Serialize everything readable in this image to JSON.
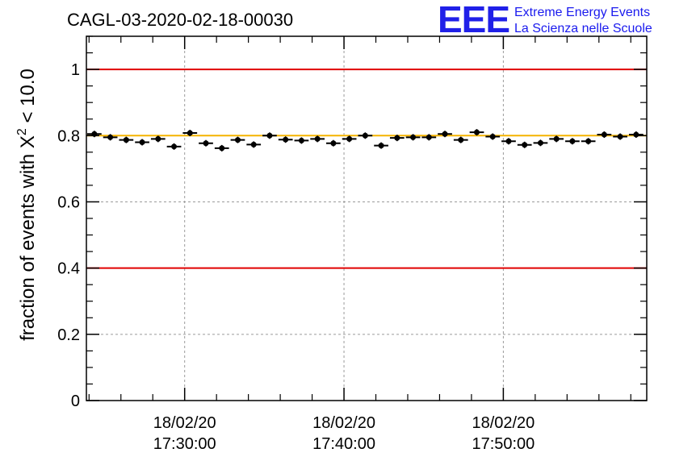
{
  "chart_data": {
    "type": "scatter",
    "title": "CAGL-03-2020-02-18-00030",
    "ylabel_main": "fraction of events with X",
    "ylabel_sup": "2",
    "ylabel_tail": " < 10.0",
    "xlabel": "",
    "ylim": [
      0,
      1.1
    ],
    "yticks": [
      0,
      0.2,
      0.4,
      0.6,
      0.8,
      1
    ],
    "ytick_labels": [
      "0",
      "0.2",
      "0.4",
      "0.6",
      "0.8",
      "1"
    ],
    "xlim": [
      "18/02/20 17:23:50",
      "18/02/20 17:59:00"
    ],
    "xticks": [
      {
        "date": "18/02/20",
        "time": "17:30:00"
      },
      {
        "date": "18/02/20",
        "time": "17:40:00"
      },
      {
        "date": "18/02/20",
        "time": "17:50:00"
      }
    ],
    "grid": true,
    "reference_lines": [
      {
        "y": 1.0,
        "color": "#e00000"
      },
      {
        "y": 0.4,
        "color": "#e00000"
      },
      {
        "y": 0.8,
        "color": "#f5b400"
      }
    ],
    "bin_width_seconds": 60,
    "x_start": "18/02/20 17:23:50",
    "series": [
      {
        "color": "#000000",
        "values": [
          0.805,
          0.795,
          0.787,
          0.78,
          0.79,
          0.767,
          0.808,
          0.777,
          0.762,
          0.787,
          0.773,
          0.8,
          0.788,
          0.785,
          0.79,
          0.777,
          0.79,
          0.8,
          0.77,
          0.793,
          0.795,
          0.795,
          0.805,
          0.787,
          0.81,
          0.797,
          0.783,
          0.772,
          0.778,
          0.79,
          0.783,
          0.783,
          0.803,
          0.797,
          0.803
        ]
      }
    ]
  },
  "logo": {
    "letters": "EEE",
    "line1": "Extreme Energy Events",
    "line2": "La Scienza nelle Scuole",
    "color": "#2020e8"
  }
}
